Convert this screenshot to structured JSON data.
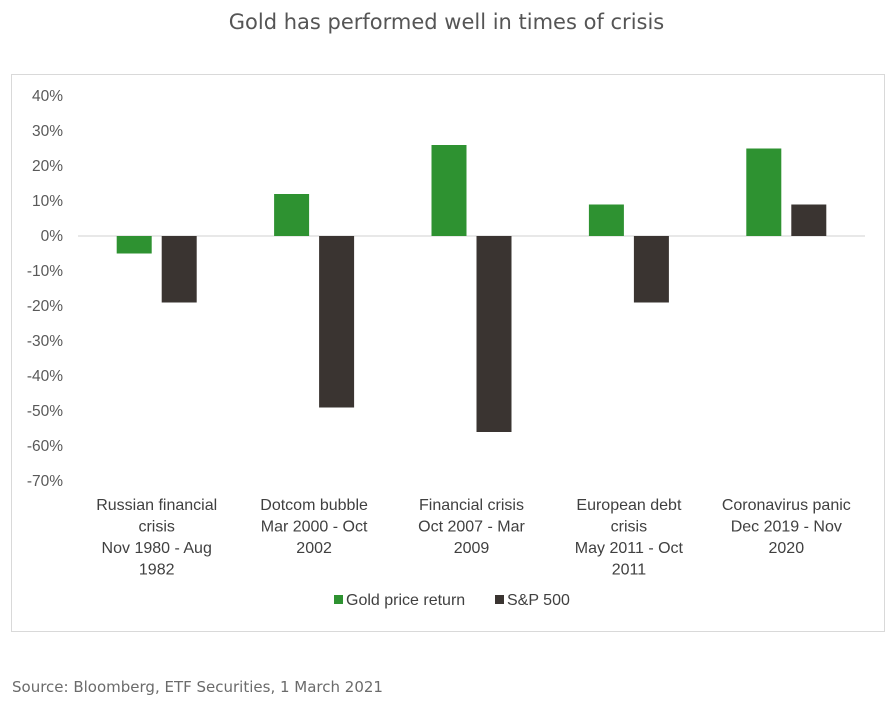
{
  "title": "Gold has performed well in times of crisis",
  "source": "Source: Bloomberg, ETF Securities, 1 March 2021",
  "colors": {
    "gold": "#2e9231",
    "sp500": "#3a3431",
    "axis": "#d9d9d9"
  },
  "chart_data": {
    "type": "bar",
    "title": "Gold has performed well in times of crisis",
    "categories": [
      [
        "Russian financial",
        "crisis",
        "Nov 1980 - Aug",
        "1982"
      ],
      [
        "Dotcom bubble",
        "Mar 2000 - Oct",
        "2002"
      ],
      [
        "Financial crisis",
        "Oct 2007 - Mar",
        "2009"
      ],
      [
        "European debt",
        "crisis",
        "May 2011 - Oct",
        "2011"
      ],
      [
        "Coronavirus panic",
        "Dec 2019 - Nov",
        "2020"
      ]
    ],
    "series": [
      {
        "name": "Gold price return",
        "values": [
          -5,
          12,
          26,
          9,
          25
        ]
      },
      {
        "name": "S&P 500",
        "values": [
          -19,
          -49,
          -56,
          -19,
          9
        ]
      }
    ],
    "ylim": [
      -70,
      40
    ],
    "yticks": [
      "40%",
      "30%",
      "20%",
      "10%",
      "0%",
      "-10%",
      "-20%",
      "-30%",
      "-40%",
      "-50%",
      "-60%",
      "-70%"
    ],
    "ytick_values": [
      40,
      30,
      20,
      10,
      0,
      -10,
      -20,
      -30,
      -40,
      -50,
      -60,
      -70
    ],
    "legend": "bottom",
    "grid": false
  }
}
